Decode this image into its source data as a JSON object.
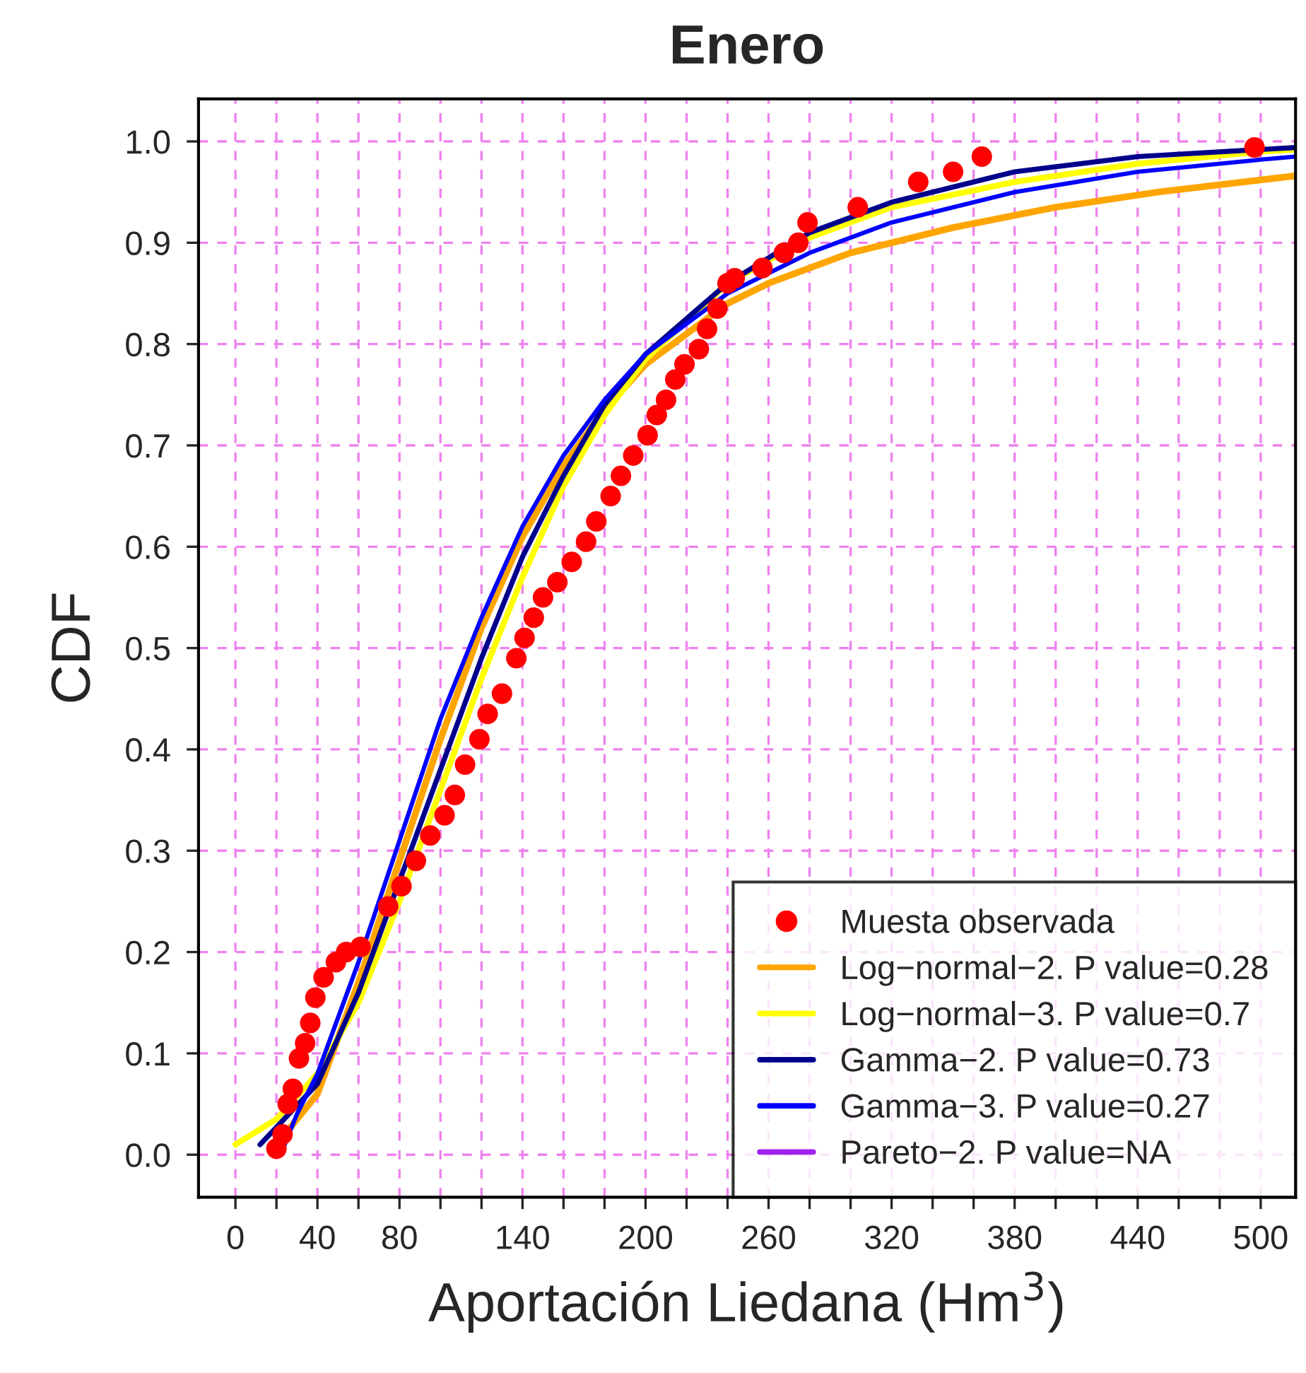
{
  "chart_data": {
    "type": "line",
    "title": "Enero",
    "xlabel": "Aportación Liedana (Hm$^{3}$)",
    "ylabel": "CDF",
    "xlim": [
      -18,
      517
    ],
    "ylim": [
      -0.042,
      1.042
    ],
    "xticks": [
      {
        "value": 0,
        "label": "0"
      },
      {
        "value": 20,
        "label": null
      },
      {
        "value": 40,
        "label": "40"
      },
      {
        "value": 60,
        "label": null
      },
      {
        "value": 80,
        "label": "80"
      },
      {
        "value": 100,
        "label": null
      },
      {
        "value": 120,
        "label": null
      },
      {
        "value": 140,
        "label": "140"
      },
      {
        "value": 160,
        "label": null
      },
      {
        "value": 180,
        "label": null
      },
      {
        "value": 200,
        "label": "200"
      },
      {
        "value": 220,
        "label": null
      },
      {
        "value": 240,
        "label": null
      },
      {
        "value": 260,
        "label": "260"
      },
      {
        "value": 280,
        "label": null
      },
      {
        "value": 300,
        "label": null
      },
      {
        "value": 320,
        "label": "320"
      },
      {
        "value": 340,
        "label": null
      },
      {
        "value": 360,
        "label": null
      },
      {
        "value": 380,
        "label": "380"
      },
      {
        "value": 400,
        "label": null
      },
      {
        "value": 420,
        "label": null
      },
      {
        "value": 440,
        "label": "440"
      },
      {
        "value": 460,
        "label": null
      },
      {
        "value": 480,
        "label": null
      },
      {
        "value": 500,
        "label": "500"
      }
    ],
    "yticks": [
      {
        "value": 0,
        "label": "0.0"
      },
      0.1,
      0.2,
      0.3,
      0.4,
      0.5,
      0.6,
      0.7,
      0.8,
      0.9,
      {
        "value": 1,
        "label": "1.0"
      }
    ],
    "grid": true,
    "legend": "bottom right",
    "series": [
      {
        "name": "Muesta observada",
        "type": "scatter",
        "marker": "circle",
        "color": "#ff0000",
        "x": [
          20,
          23,
          25.5,
          28,
          31,
          34,
          36.5,
          39,
          43,
          49,
          54,
          61,
          74.5,
          81,
          88,
          95,
          102,
          107,
          112,
          119,
          123,
          130,
          137,
          141,
          145.5,
          150,
          157,
          164,
          171,
          176,
          183,
          188,
          194,
          201,
          205.5,
          210,
          214.5,
          219,
          226,
          230,
          235,
          240,
          243.5,
          257,
          267.5,
          274.5,
          279,
          303.5,
          333,
          350,
          364,
          497
        ],
        "values": [
          0.006,
          0.02,
          0.05,
          0.065,
          0.095,
          0.11,
          0.13,
          0.155,
          0.175,
          0.19,
          0.2,
          0.205,
          0.245,
          0.265,
          0.29,
          0.315,
          0.335,
          0.355,
          0.385,
          0.41,
          0.435,
          0.455,
          0.49,
          0.51,
          0.53,
          0.55,
          0.565,
          0.585,
          0.605,
          0.625,
          0.65,
          0.67,
          0.69,
          0.71,
          0.73,
          0.745,
          0.765,
          0.78,
          0.795,
          0.815,
          0.835,
          0.86,
          0.865,
          0.875,
          0.89,
          0.9,
          0.92,
          0.935,
          0.96,
          0.97,
          0.985,
          0.994
        ]
      },
      {
        "name": "Log−normal−2. P value=0.28",
        "color": "#ffa500",
        "x": [
          20,
          40,
          60,
          80,
          100,
          120,
          140,
          160,
          180,
          200,
          220,
          240,
          260,
          300,
          350,
          400,
          450,
          500,
          517
        ],
        "values": [
          0.01,
          0.06,
          0.17,
          0.29,
          0.41,
          0.52,
          0.61,
          0.68,
          0.735,
          0.78,
          0.81,
          0.84,
          0.86,
          0.89,
          0.915,
          0.935,
          0.95,
          0.962,
          0.966
        ]
      },
      {
        "name": "Log−normal−3. P value=0.7",
        "color": "#ffff00",
        "x": [
          0,
          20,
          40,
          60,
          80,
          100,
          120,
          140,
          160,
          180,
          200,
          240,
          280,
          320,
          380,
          440,
          500,
          517
        ],
        "values": [
          0.01,
          0.035,
          0.08,
          0.15,
          0.25,
          0.36,
          0.47,
          0.57,
          0.66,
          0.73,
          0.785,
          0.86,
          0.905,
          0.935,
          0.96,
          0.978,
          0.99,
          0.992
        ]
      },
      {
        "name": "Gamma−2. P value=0.73",
        "color": "#00008b",
        "x": [
          12,
          40,
          60,
          80,
          100,
          120,
          140,
          160,
          180,
          200,
          240,
          280,
          320,
          380,
          440,
          500,
          517
        ],
        "values": [
          0.01,
          0.07,
          0.16,
          0.27,
          0.38,
          0.49,
          0.59,
          0.67,
          0.74,
          0.79,
          0.86,
          0.91,
          0.94,
          0.97,
          0.985,
          0.992,
          0.994
        ]
      },
      {
        "name": "Gamma−3. P value=0.27",
        "color": "#0000ff",
        "x": [
          22,
          30,
          40,
          60,
          80,
          100,
          120,
          140,
          160,
          180,
          200,
          240,
          280,
          320,
          380,
          440,
          500,
          517
        ],
        "values": [
          0.0,
          0.04,
          0.08,
          0.19,
          0.31,
          0.43,
          0.53,
          0.62,
          0.69,
          0.745,
          0.79,
          0.85,
          0.89,
          0.92,
          0.95,
          0.97,
          0.982,
          0.985
        ]
      },
      {
        "name": "Pareto−2. P value=NA",
        "color": "#a020f0"
      }
    ]
  }
}
